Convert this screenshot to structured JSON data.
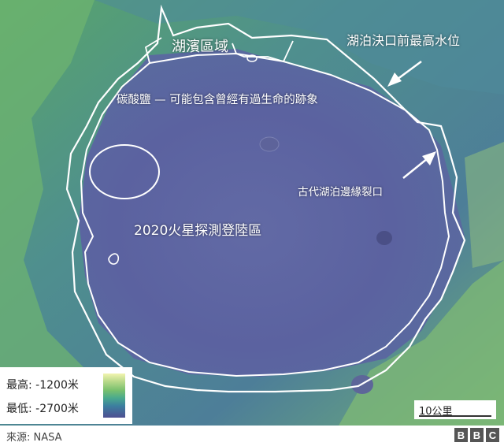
{
  "map": {
    "labels": {
      "lake_shore": "湖濱區域",
      "high_water": "湖泊決口前最高水位",
      "carbonate": "碳酸鹽 — 可能包含曾經有過生命的跡象",
      "breach": "古代湖泊邊緣裂口",
      "landing": "2020火星探測登陸區"
    }
  },
  "legend": {
    "max_label": "最高: -1200米",
    "min_label": "最低: -2700米",
    "colors": [
      "#f2f4b0",
      "#79c06e",
      "#3c7d9f",
      "#4e4f92"
    ]
  },
  "scale": {
    "label": "10公里"
  },
  "footer": {
    "source": "來源: NASA",
    "logo": [
      "B",
      "B",
      "C"
    ]
  }
}
